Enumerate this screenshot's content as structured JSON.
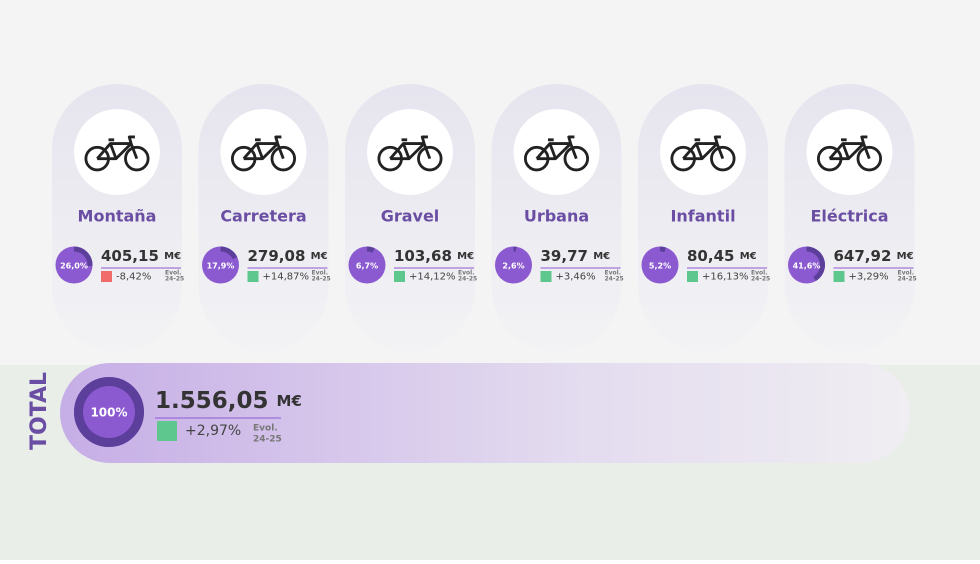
{
  "cards": [
    {
      "name": "Montaña",
      "share": {
        "value": 26.0,
        "label": "26,0%"
      },
      "amount": "405,15",
      "unit": "M€",
      "evol": "-8,42%",
      "evol_color": "#f26b6b",
      "evol_caption_1": "Evol.",
      "evol_caption_2": "24-25"
    },
    {
      "name": "Carretera",
      "share": {
        "value": 17.9,
        "label": "17,9%"
      },
      "amount": "279,08",
      "unit": "M€",
      "evol": "+14,87%",
      "evol_color": "#5dc78e",
      "evol_caption_1": "Evol.",
      "evol_caption_2": "24-25"
    },
    {
      "name": "Gravel",
      "share": {
        "value": 6.7,
        "label": "6,7%"
      },
      "amount": "103,68",
      "unit": "M€",
      "evol": "+14,12%",
      "evol_color": "#5dc78e",
      "evol_caption_1": "Evol.",
      "evol_caption_2": "24-25"
    },
    {
      "name": "Urbana",
      "share": {
        "value": 2.6,
        "label": "2,6%"
      },
      "amount": "39,77",
      "unit": "M€",
      "evol": "+3,46%",
      "evol_color": "#5dc78e",
      "evol_caption_1": "Evol.",
      "evol_caption_2": "24-25"
    },
    {
      "name": "Infantil",
      "share": {
        "value": 5.2,
        "label": "5,2%"
      },
      "amount": "80,45",
      "unit": "M€",
      "evol": "+16,13%",
      "evol_color": "#5dc78e",
      "evol_caption_1": "Evol.",
      "evol_caption_2": "24-25"
    },
    {
      "name": "Eléctrica",
      "share": {
        "value": 41.6,
        "label": "41,6%"
      },
      "amount": "647,92",
      "unit": "M€",
      "evol": "+3,29%",
      "evol_color": "#5dc78e",
      "evol_caption_1": "Evol.",
      "evol_caption_2": "24-25"
    }
  ],
  "total": {
    "title": "TOTAL",
    "share": {
      "value": 100,
      "label": "100%"
    },
    "amount": "1.556,05",
    "unit": "M€",
    "evol": "+2,97%",
    "evol_color": "#5dc78e",
    "evol_caption_1": "Evol.",
    "evol_caption_2": "24-25"
  }
}
